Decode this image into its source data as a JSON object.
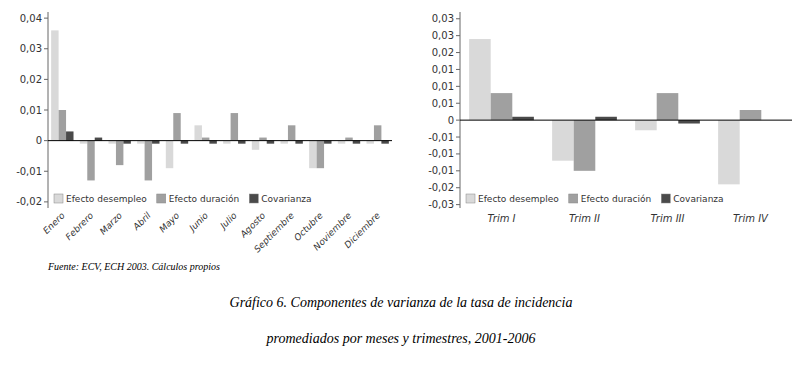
{
  "title": "Gráfico 6. Componentes de varianza de la tasa de incidencia",
  "subtitle": "promediados por meses y trimestres, 2001-2006",
  "annotations": [
    "Fuente: ECV, ECH 2003. Cálculos propios"
  ],
  "chart_data": [
    {
      "type": "bar",
      "categories": [
        "Enero",
        "Febrero",
        "Marzo",
        "Abril",
        "Mayo",
        "Junio",
        "Julio",
        "Agosto",
        "Septiembre",
        "Octubre",
        "Noviembre",
        "Diciembre"
      ],
      "series": [
        {
          "name": "Efecto desempleo",
          "color": "#d9d9d9",
          "values": [
            0.036,
            -0.001,
            -0.001,
            -0.001,
            -0.009,
            0.005,
            -0.001,
            -0.003,
            -0.001,
            -0.009,
            -0.001,
            -0.001
          ]
        },
        {
          "name": "Efecto duración",
          "color": "#a0a0a0",
          "values": [
            0.01,
            -0.013,
            -0.008,
            -0.013,
            0.009,
            0.001,
            0.009,
            0.001,
            0.005,
            -0.009,
            0.001,
            0.005
          ]
        },
        {
          "name": "Covarianza",
          "color": "#4a4a4a",
          "values": [
            0.003,
            0.001,
            -0.001,
            -0.001,
            -0.001,
            -0.001,
            -0.001,
            -0.001,
            -0.001,
            -0.001,
            -0.001,
            -0.001
          ]
        }
      ],
      "ylim": [
        -0.022,
        0.042
      ],
      "yticks": [
        {
          "value": -0.02,
          "label": "-0,02"
        },
        {
          "value": -0.01,
          "label": "-0,01"
        },
        0,
        {
          "value": 0.01,
          "label": "0,01"
        },
        {
          "value": 0.02,
          "label": "0,02"
        },
        {
          "value": 0.03,
          "label": "0,03"
        },
        {
          "value": 0.04,
          "label": "0,04"
        }
      ],
      "grid": false,
      "legend": "lower left"
    },
    {
      "type": "bar",
      "categories": [
        "Trim I",
        "Trim II",
        "Trim III",
        "Trim IV"
      ],
      "series": [
        {
          "name": "Efecto desempleo",
          "color": "#d9d9d9",
          "values": [
            0.024,
            -0.012,
            -0.003,
            -0.019
          ]
        },
        {
          "name": "Efecto duración",
          "color": "#a0a0a0",
          "values": [
            0.008,
            -0.015,
            0.008,
            0.003
          ]
        },
        {
          "name": "Covarianza",
          "color": "#4a4a4a",
          "values": [
            0.001,
            0.001,
            -0.001,
            0.0
          ]
        }
      ],
      "ylim": [
        -0.026,
        0.032
      ],
      "yticks": [
        {
          "value": -0.025,
          "label": "-0,03"
        },
        {
          "value": -0.02,
          "label": "-0,02"
        },
        {
          "value": -0.015,
          "label": "-0,01"
        },
        {
          "value": -0.01,
          "label": "-0,01"
        },
        {
          "value": -0.005,
          "label": "-0,01"
        },
        0,
        {
          "value": 0.005,
          "label": "0,01"
        },
        {
          "value": 0.01,
          "label": "0,01"
        },
        {
          "value": 0.015,
          "label": "0,01"
        },
        {
          "value": 0.02,
          "label": "0,02"
        },
        {
          "value": 0.025,
          "label": "0,03"
        },
        {
          "value": 0.03,
          "label": "0,03"
        }
      ],
      "grid": false,
      "legend": "lower left"
    }
  ]
}
